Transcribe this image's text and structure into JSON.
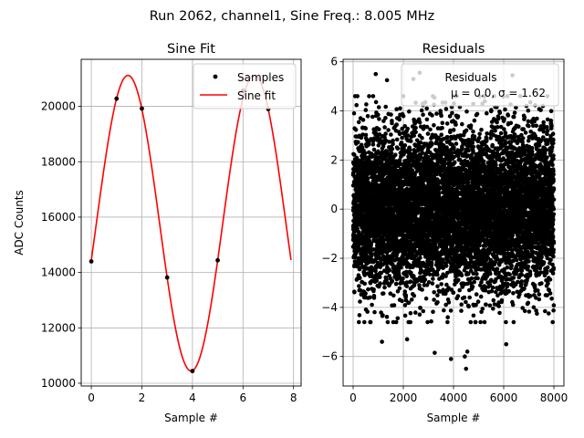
{
  "suptitle": "Run 2062, channel1, Sine Freq.: 8.005 MHz",
  "chart_data": [
    {
      "type": "line",
      "title": "Sine Fit",
      "xlabel": "Sample #",
      "ylabel": "ADC Counts",
      "xlim": [
        -0.4,
        8.3
      ],
      "ylim": [
        9900,
        21700
      ],
      "xticks": [
        0,
        2,
        4,
        6,
        8
      ],
      "yticks": [
        10000,
        12000,
        14000,
        16000,
        18000,
        20000
      ],
      "grid": true,
      "legend_position": "top-right",
      "series": [
        {
          "name": "Samples",
          "style": "markers",
          "color": "#000000",
          "x": [
            0,
            1,
            2,
            3,
            4,
            5,
            6,
            7
          ],
          "y": [
            14400,
            20280,
            19920,
            13820,
            10440,
            14440,
            20570,
            19900
          ]
        },
        {
          "name": "Sine fit",
          "style": "line",
          "color": "#ff0000",
          "model": {
            "offset": 15780,
            "amplitude": 5340,
            "period": 5.0,
            "phase_sample": 1.45
          },
          "x_range": [
            0,
            7.9
          ]
        }
      ]
    },
    {
      "type": "scatter",
      "title": "Residuals",
      "xlabel": "Sample #",
      "ylabel": "",
      "xlim": [
        -400,
        8400
      ],
      "ylim": [
        -7.2,
        6.1
      ],
      "xticks": [
        0,
        2000,
        4000,
        6000,
        8000
      ],
      "yticks": [
        -6,
        -4,
        -2,
        0,
        2,
        4,
        6
      ],
      "grid": true,
      "legend_position": "top-right",
      "legend_label": "Residuals",
      "legend_stats": "μ = 0.0, σ = 1.62",
      "stats": {
        "mean": 0.0,
        "sigma": 1.62,
        "n_points": 8000
      },
      "series": [
        {
          "name": "Residuals",
          "color": "#000000",
          "notable_points": [
            [
              900,
              5.5
            ],
            [
              1350,
              5.25
            ],
            [
              2400,
              5.3
            ],
            [
              2650,
              5.55
            ],
            [
              6350,
              5.45
            ],
            [
              3900,
              -6.1
            ],
            [
              4500,
              -6.5
            ],
            [
              4450,
              -6.0
            ],
            [
              3250,
              -5.85
            ],
            [
              1150,
              -5.4
            ],
            [
              6100,
              -5.5
            ],
            [
              4550,
              -5.8
            ],
            [
              2150,
              -5.3
            ]
          ]
        }
      ]
    }
  ]
}
